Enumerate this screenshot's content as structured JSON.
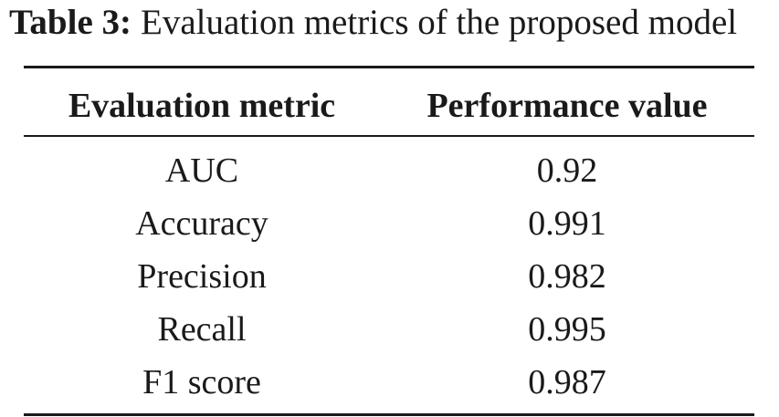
{
  "caption": {
    "label": "Table 3:",
    "text": "Evaluation metrics of the proposed model"
  },
  "table": {
    "headers": [
      "Evaluation metric",
      "Performance value"
    ],
    "rows": [
      [
        "AUC",
        "0.92"
      ],
      [
        "Accuracy",
        "0.991"
      ],
      [
        "Precision",
        "0.982"
      ],
      [
        "Recall",
        "0.995"
      ],
      [
        "F1 score",
        "0.987"
      ]
    ]
  }
}
